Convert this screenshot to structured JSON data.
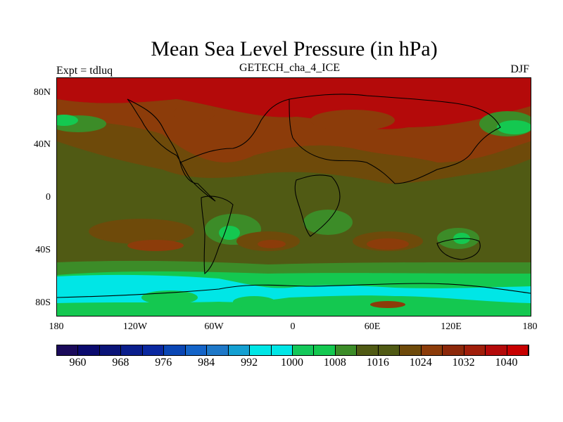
{
  "title": "Mean Sea Level Pressure (in hPa)",
  "subtitle": "GETECH_cha_4_ICE",
  "left_label": "Expt = tdluq",
  "right_label": "DJF",
  "lat_ticks": [
    "80N",
    "40N",
    "0",
    "40S",
    "80S"
  ],
  "lon_ticks": [
    "180",
    "120W",
    "60W",
    "0",
    "60E",
    "120E",
    "180"
  ],
  "colorbar": {
    "labels": [
      "960",
      "968",
      "976",
      "984",
      "992",
      "1000",
      "1008",
      "1016",
      "1024",
      "1032",
      "1040"
    ],
    "colors": [
      "#1a0a5a",
      "#0a0a6e",
      "#0a1478",
      "#0a1e8c",
      "#0a28a0",
      "#0a46b4",
      "#1464c8",
      "#1e78c8",
      "#14a0d2",
      "#00e6e6",
      "#00e6e6",
      "#14c85a",
      "#14c850",
      "#3c8c28",
      "#505a14",
      "#505a14",
      "#6e4a0a",
      "#8c3c0a",
      "#8c280a",
      "#a01e0a",
      "#b40a0a",
      "#c80000"
    ]
  }
}
